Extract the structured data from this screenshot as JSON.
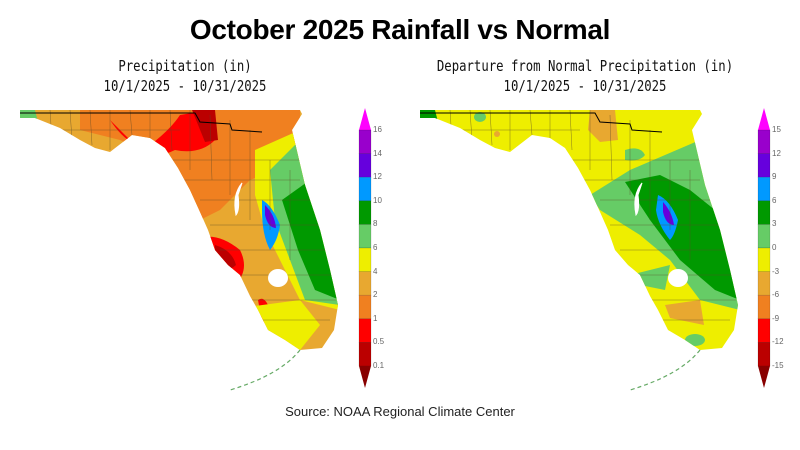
{
  "title": "October 2025 Rainfall vs Normal",
  "source": "Source:  NOAA Regional Climate Center",
  "panels": [
    {
      "id": "precip",
      "title_line1": "Precipitation (in)",
      "title_line2": "10/1/2025 - 10/31/2025",
      "legend": {
        "labels": [
          "16",
          "14",
          "12",
          "10",
          "8",
          "6",
          "4",
          "2",
          "1",
          "0.5",
          "0.1"
        ],
        "colors": [
          "#ff00ff",
          "#9900cc",
          "#6600dd",
          "#0099ff",
          "#009900",
          "#66cc66",
          "#eeee00",
          "#e8a830",
          "#f08020",
          "#ff0000",
          "#bb0000",
          "#880000"
        ]
      },
      "region": "Florida",
      "pattern": "Mostly 1-4 in statewide; under 1 in across Big Bend, north-central, Tampa Bay and interior south; 8-14 in along the east-central coast near Cape Canaveral"
    },
    {
      "id": "departure",
      "title_line1": "Departure from Normal Precipitation (in)",
      "title_line2": "10/1/2025 - 10/31/2025",
      "legend": {
        "labels": [
          "15",
          "12",
          "9",
          "6",
          "3",
          "0",
          "-3",
          "-6",
          "-9",
          "-12",
          "-15"
        ],
        "colors": [
          "#ff00ff",
          "#9900cc",
          "#6600dd",
          "#0099ff",
          "#009900",
          "#66cc66",
          "#eeee00",
          "#e8a830",
          "#f08020",
          "#ff0000",
          "#bb0000",
          "#880000"
        ]
      },
      "region": "Florida",
      "pattern": "Mostly 0 to -3 in below normal statewide; 3-12 in above normal along the east-central coast; -3 to -6 pockets in north Florida and southeast"
    }
  ],
  "colors": {
    "county_line": "#5a4a2a",
    "state_line": "#000000",
    "coast": "#aaaaaa",
    "lake": "#ffffff"
  }
}
